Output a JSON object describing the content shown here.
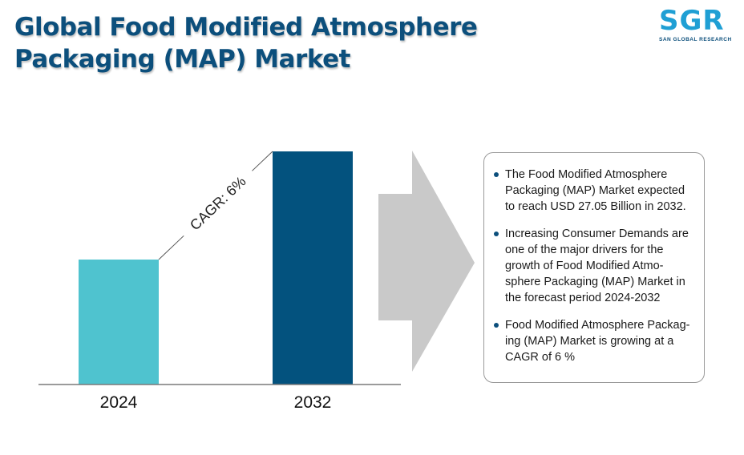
{
  "title_line1": "Global Food Modified Atmosphere",
  "title_line2": "Packaging (MAP) Market",
  "logo": {
    "mark": "SGR",
    "sub": "SAN GLOBAL RESEARCH"
  },
  "chart_data": {
    "type": "bar",
    "categories": [
      "2024",
      "2032"
    ],
    "values": [
      0.536,
      1.0
    ],
    "value_note": "relative bar heights; absolute values not printed",
    "annotation": "CAGR: 6%",
    "colors": [
      "#4fc3cf",
      "#03527e"
    ],
    "axis_color": "#7a7a7a",
    "grid": false,
    "title": "",
    "xlabel": "",
    "ylabel": ""
  },
  "arrow_color": "#c9c9c9",
  "bullets": [
    "The Food Modified Atmosphere Packaging (MAP) Market expected to reach USD 27.05 Billion in 2032.",
    "Increasing Consumer Demands are one of the major drivers for the growth of Food Modified Atmo-sphere Packaging (MAP) Market in the forecast period 2024-2032",
    "Food Modified Atmosphere Packag-ing (MAP) Market is growing at a CAGR of 6 %"
  ]
}
